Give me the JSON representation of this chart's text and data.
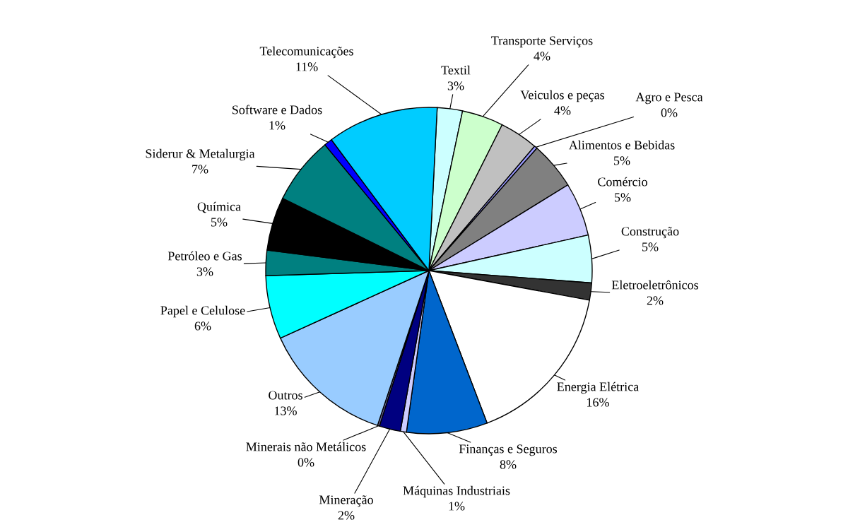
{
  "chart_data": {
    "type": "pie",
    "categories": [
      "Textil",
      "Transporte Serviços",
      "Veiculos e peças",
      "Agro e Pesca",
      "Alimentos e Bebidas",
      "Comércio",
      "Construção",
      "Eletroeletrônicos",
      "Energia Elétrica",
      "Finanças e Seguros",
      "Máquinas Industriais",
      "Mineração",
      "Minerais não Metálicos",
      "Outros",
      "Papel e Celulose",
      "Petróleo e Gas",
      "Química",
      "Siderur & Metalurgia",
      "Software e Dados",
      "Telecomunicações"
    ],
    "values": [
      2.5,
      4.1,
      3.8,
      0.3,
      4.7,
      5.3,
      4.7,
      1.7,
      16.3,
      8.0,
      0.6,
      2.1,
      0.2,
      13.1,
      6.3,
      2.5,
      5.3,
      6.7,
      0.8,
      11.0
    ],
    "value_labels": [
      "3%",
      "4%",
      "4%",
      "0%",
      "5%",
      "5%",
      "5%",
      "2%",
      "16%",
      "8%",
      "1%",
      "2%",
      "0%",
      "13%",
      "6%",
      "3%",
      "5%",
      "7%",
      "1%",
      "11%"
    ],
    "colors": [
      "#ccffff",
      "#ccffcc",
      "#c0c0c0",
      "#9999ff",
      "#808080",
      "#ccccff",
      "#ccffff",
      "#333333",
      "#ffffff",
      "#0066cc",
      "#ccccff",
      "#000080",
      "#666699",
      "#99ccff",
      "#00ffff",
      "#008080",
      "#000000",
      "#008080",
      "#0000ff",
      "#00ccff"
    ],
    "legend": false
  }
}
